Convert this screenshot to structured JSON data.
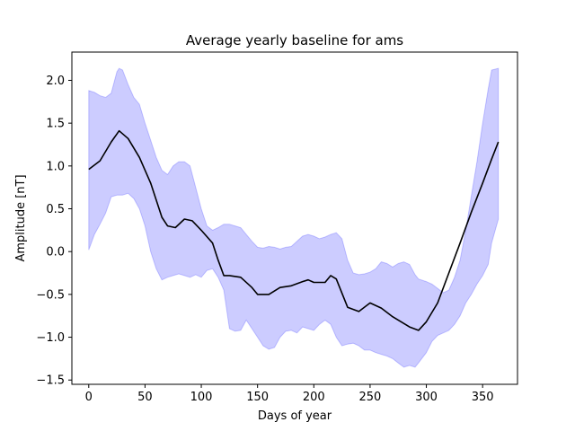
{
  "chart_data": {
    "type": "line",
    "title": "Average yearly baseline for ams",
    "xlabel": "Days of year",
    "ylabel": "Amplitude [nT]",
    "xlim": [
      -15,
      381
    ],
    "ylim": [
      -1.55,
      2.33
    ],
    "xticks": [
      0,
      50,
      100,
      150,
      200,
      250,
      300,
      350
    ],
    "xtick_labels": [
      "0",
      "50",
      "100",
      "150",
      "200",
      "250",
      "300",
      "350"
    ],
    "yticks": [
      -1.5,
      -1.0,
      -0.5,
      0.0,
      0.5,
      1.0,
      1.5,
      2.0
    ],
    "ytick_labels": [
      "−1.5",
      "−1.0",
      "−0.5",
      "0.0",
      "0.5",
      "1.0",
      "1.5",
      "2.0"
    ],
    "grid": false,
    "legend": "none",
    "colors": {
      "line": "#000000",
      "band": "#0000ff",
      "band_opacity": 0.2,
      "axes": "#000000"
    },
    "series": [
      {
        "kind": "mean",
        "x": [
          0,
          10,
          20,
          27,
          35,
          45,
          55,
          65,
          70,
          77,
          85,
          92,
          100,
          110,
          115,
          120,
          125,
          135,
          145,
          150,
          160,
          170,
          180,
          190,
          195,
          200,
          210,
          215,
          220,
          230,
          240,
          250,
          260,
          270,
          285,
          293,
          300,
          310,
          320,
          330,
          340,
          350,
          358,
          364
        ],
        "y": [
          0.96,
          1.06,
          1.28,
          1.41,
          1.32,
          1.1,
          0.8,
          0.4,
          0.3,
          0.28,
          0.38,
          0.36,
          0.25,
          0.1,
          -0.1,
          -0.28,
          -0.28,
          -0.3,
          -0.42,
          -0.5,
          -0.5,
          -0.42,
          -0.4,
          -0.35,
          -0.33,
          -0.36,
          -0.36,
          -0.28,
          -0.32,
          -0.65,
          -0.7,
          -0.6,
          -0.66,
          -0.76,
          -0.88,
          -0.92,
          -0.82,
          -0.6,
          -0.25,
          0.1,
          0.46,
          0.8,
          1.08,
          1.28
        ]
      },
      {
        "kind": "band",
        "x": [
          0,
          5,
          10,
          15,
          20,
          25,
          27,
          30,
          35,
          40,
          45,
          50,
          55,
          60,
          65,
          70,
          75,
          80,
          85,
          90,
          95,
          100,
          105,
          110,
          115,
          120,
          125,
          130,
          135,
          140,
          145,
          150,
          155,
          160,
          165,
          170,
          175,
          180,
          185,
          190,
          195,
          200,
          205,
          210,
          215,
          220,
          225,
          230,
          235,
          240,
          245,
          250,
          255,
          260,
          265,
          270,
          275,
          280,
          285,
          290,
          293,
          300,
          305,
          310,
          315,
          320,
          325,
          330,
          335,
          340,
          345,
          350,
          355,
          358,
          364
        ],
        "upper": [
          1.88,
          1.86,
          1.82,
          1.8,
          1.85,
          2.1,
          2.14,
          2.12,
          1.95,
          1.8,
          1.72,
          1.5,
          1.3,
          1.1,
          0.95,
          0.9,
          1.0,
          1.05,
          1.05,
          1.0,
          0.75,
          0.5,
          0.3,
          0.25,
          0.28,
          0.32,
          0.32,
          0.3,
          0.28,
          0.2,
          0.12,
          0.05,
          0.04,
          0.06,
          0.05,
          0.03,
          0.05,
          0.06,
          0.12,
          0.18,
          0.2,
          0.18,
          0.15,
          0.17,
          0.2,
          0.22,
          0.15,
          -0.1,
          -0.25,
          -0.27,
          -0.26,
          -0.24,
          -0.2,
          -0.12,
          -0.14,
          -0.18,
          -0.14,
          -0.12,
          -0.15,
          -0.27,
          -0.32,
          -0.35,
          -0.38,
          -0.43,
          -0.48,
          -0.45,
          -0.3,
          -0.1,
          0.25,
          0.65,
          1.05,
          1.5,
          1.9,
          2.12,
          2.14
        ],
        "lower": [
          0.02,
          0.2,
          0.32,
          0.45,
          0.64,
          0.66,
          0.66,
          0.66,
          0.68,
          0.62,
          0.5,
          0.3,
          0.0,
          -0.2,
          -0.33,
          -0.3,
          -0.28,
          -0.26,
          -0.28,
          -0.3,
          -0.27,
          -0.3,
          -0.22,
          -0.2,
          -0.3,
          -0.45,
          -0.9,
          -0.93,
          -0.92,
          -0.8,
          -0.9,
          -1.0,
          -1.1,
          -1.14,
          -1.12,
          -1.0,
          -0.93,
          -0.92,
          -0.95,
          -0.88,
          -0.9,
          -0.92,
          -0.85,
          -0.8,
          -0.85,
          -1.0,
          -1.1,
          -1.08,
          -1.07,
          -1.1,
          -1.15,
          -1.15,
          -1.18,
          -1.2,
          -1.22,
          -1.25,
          -1.3,
          -1.35,
          -1.33,
          -1.35,
          -1.3,
          -1.18,
          -1.05,
          -0.98,
          -0.95,
          -0.92,
          -0.85,
          -0.75,
          -0.6,
          -0.5,
          -0.38,
          -0.28,
          -0.15,
          0.1,
          0.38
        ]
      }
    ]
  }
}
